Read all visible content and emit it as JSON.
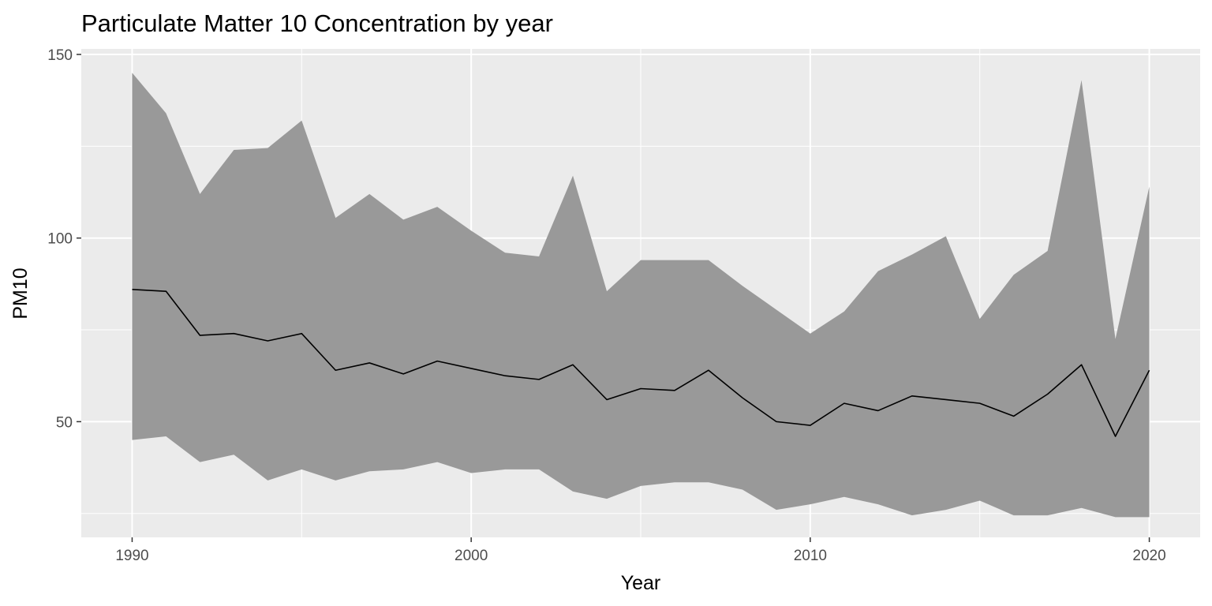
{
  "chart_data": {
    "type": "area",
    "title": "Particulate Matter 10 Concentration by year",
    "xlabel": "Year",
    "ylabel": "PM10",
    "xlim": [
      1988.5,
      2021.5
    ],
    "ylim": [
      18.5,
      151.5
    ],
    "x_ticks": [
      1990,
      2000,
      2010,
      2020
    ],
    "x_tick_labels": [
      "1990",
      "2000",
      "2010",
      "2020"
    ],
    "y_ticks": [
      50,
      100,
      150
    ],
    "y_tick_labels": [
      "50",
      "100",
      "150"
    ],
    "grid": true,
    "legend": "none",
    "x": [
      1990,
      1991,
      1992,
      1993,
      1994,
      1995,
      1996,
      1997,
      1998,
      1999,
      2000,
      2001,
      2002,
      2003,
      2004,
      2005,
      2006,
      2007,
      2008,
      2009,
      2010,
      2011,
      2012,
      2013,
      2014,
      2015,
      2016,
      2017,
      2018,
      2019,
      2020
    ],
    "series": [
      {
        "role": "upper",
        "values": [
          145,
          134,
          112,
          124,
          124.5,
          132,
          105.5,
          112,
          105,
          108.5,
          102,
          96,
          95,
          117,
          85.5,
          94,
          94,
          94,
          87,
          80.5,
          74,
          80,
          91,
          95.5,
          100.5,
          78,
          90,
          96.5,
          143,
          72.5,
          114
        ]
      },
      {
        "role": "mean",
        "values": [
          86,
          85.5,
          73.5,
          74,
          72,
          74,
          64,
          66,
          63,
          66.5,
          64.5,
          62.5,
          61.5,
          65.5,
          56,
          59,
          58.5,
          64,
          56.5,
          50,
          49,
          55,
          53,
          57,
          56,
          55,
          51.5,
          57.5,
          65.5,
          46,
          64
        ]
      },
      {
        "role": "lower",
        "values": [
          45,
          46,
          39,
          41,
          34,
          37,
          34,
          36.5,
          37,
          39,
          36,
          37,
          37,
          31,
          29,
          32.5,
          33.5,
          33.5,
          31.5,
          26,
          27.5,
          29.5,
          27.5,
          24.5,
          26,
          28.5,
          24.5,
          24.5,
          26.5,
          24,
          24
        ]
      }
    ]
  },
  "colors": {
    "panel_background": "#ebebeb",
    "grid_major": "#ffffff",
    "ribbon_fill": "#999999",
    "mean_line": "#000000",
    "tick_mark": "#333333",
    "tick_label": "#4d4d4d"
  }
}
